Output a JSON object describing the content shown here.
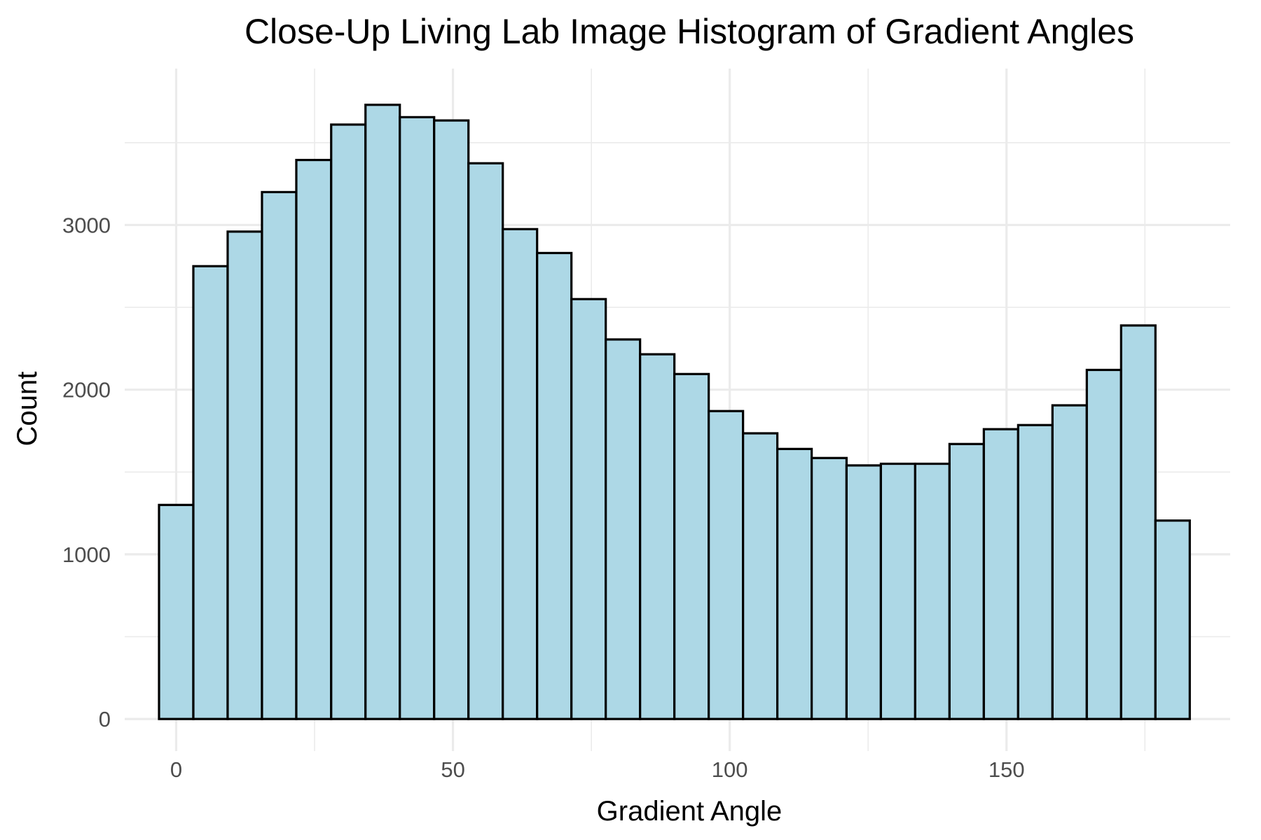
{
  "chart_data": {
    "type": "bar",
    "title": "Close-Up Living Lab Image Histogram of Gradient Angles",
    "xlabel": "Gradient Angle",
    "ylabel": "Count",
    "xlim": [
      -9.3,
      190.4
    ],
    "ylim": [
      -195,
      3950
    ],
    "x_ticks": [
      0,
      50,
      100,
      150
    ],
    "y_ticks": [
      0,
      1000,
      2000,
      3000
    ],
    "x_minor_ticks": [
      25,
      75,
      125,
      175
    ],
    "y_minor_ticks": [
      500,
      1500,
      2500,
      3500
    ],
    "grid": true,
    "bar_fill": "#add8e6",
    "bar_stroke": "#000000",
    "bins": [
      {
        "x0": -3.1,
        "x1": 3.1,
        "value": 1300
      },
      {
        "x0": 3.1,
        "x1": 9.3,
        "value": 2750
      },
      {
        "x0": 9.3,
        "x1": 15.5,
        "value": 2960
      },
      {
        "x0": 15.5,
        "x1": 21.7,
        "value": 3200
      },
      {
        "x0": 21.7,
        "x1": 28.0,
        "value": 3395
      },
      {
        "x0": 28.0,
        "x1": 34.2,
        "value": 3610
      },
      {
        "x0": 34.2,
        "x1": 40.4,
        "value": 3730
      },
      {
        "x0": 40.4,
        "x1": 46.6,
        "value": 3655
      },
      {
        "x0": 46.6,
        "x1": 52.8,
        "value": 3635
      },
      {
        "x0": 52.8,
        "x1": 59.0,
        "value": 3375
      },
      {
        "x0": 59.0,
        "x1": 65.2,
        "value": 2975
      },
      {
        "x0": 65.2,
        "x1": 71.4,
        "value": 2830
      },
      {
        "x0": 71.4,
        "x1": 77.6,
        "value": 2550
      },
      {
        "x0": 77.6,
        "x1": 83.8,
        "value": 2305
      },
      {
        "x0": 83.8,
        "x1": 90.0,
        "value": 2215
      },
      {
        "x0": 90.0,
        "x1": 96.2,
        "value": 2095
      },
      {
        "x0": 96.2,
        "x1": 102.4,
        "value": 1870
      },
      {
        "x0": 102.4,
        "x1": 108.6,
        "value": 1735
      },
      {
        "x0": 108.6,
        "x1": 114.8,
        "value": 1640
      },
      {
        "x0": 114.8,
        "x1": 121.1,
        "value": 1585
      },
      {
        "x0": 121.1,
        "x1": 127.3,
        "value": 1540
      },
      {
        "x0": 127.3,
        "x1": 133.5,
        "value": 1550
      },
      {
        "x0": 133.5,
        "x1": 139.7,
        "value": 1550
      },
      {
        "x0": 139.7,
        "x1": 145.9,
        "value": 1670
      },
      {
        "x0": 145.9,
        "x1": 152.1,
        "value": 1760
      },
      {
        "x0": 152.1,
        "x1": 158.3,
        "value": 1785
      },
      {
        "x0": 158.3,
        "x1": 164.5,
        "value": 1905
      },
      {
        "x0": 164.5,
        "x1": 170.7,
        "value": 2120
      },
      {
        "x0": 170.7,
        "x1": 176.9,
        "value": 2390
      },
      {
        "x0": 176.9,
        "x1": 183.1,
        "value": 1205
      }
    ]
  }
}
